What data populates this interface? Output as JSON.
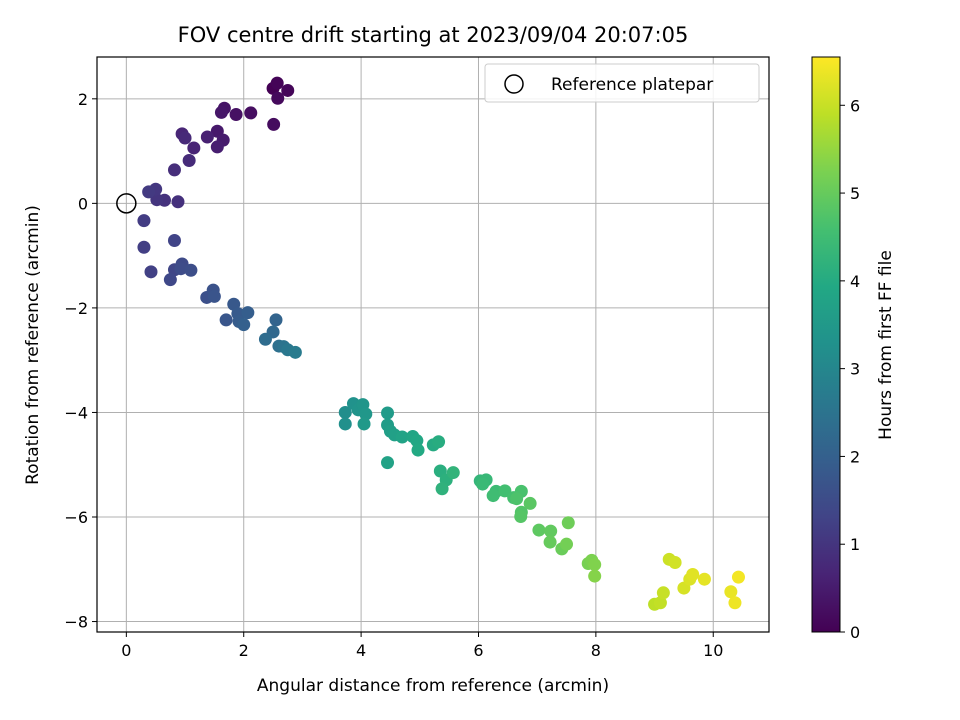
{
  "chart_data": {
    "type": "scatter",
    "title": "FOV centre drift starting at 2023/09/04 20:07:05",
    "xlabel": "Angular distance from reference (arcmin)",
    "ylabel": "Rotation from reference (arcmin)",
    "xlim": [
      -0.5,
      10.95
    ],
    "ylim": [
      -8.2,
      2.8
    ],
    "xticks": [
      0,
      2,
      4,
      6,
      8,
      10
    ],
    "yticks": [
      -8,
      -6,
      -4,
      -2,
      0,
      2
    ],
    "grid": true,
    "colormap": "viridis",
    "colorbar": {
      "label": "Hours from first FF file",
      "range": [
        0,
        6.55
      ],
      "ticks": [
        0,
        1,
        2,
        3,
        4,
        5,
        6
      ]
    },
    "legend": {
      "placement": "top-right",
      "entries": [
        "Reference platepar"
      ]
    },
    "reference_point": {
      "x": 0,
      "y": 0
    },
    "points": [
      {
        "x": 2.5,
        "y": 2.2,
        "c": 0.0
      },
      {
        "x": 2.57,
        "y": 2.3,
        "c": 0.05
      },
      {
        "x": 2.75,
        "y": 2.16,
        "c": 0.1
      },
      {
        "x": 2.58,
        "y": 2.01,
        "c": 0.15
      },
      {
        "x": 2.51,
        "y": 1.51,
        "c": 0.2
      },
      {
        "x": 2.12,
        "y": 1.73,
        "c": 0.25
      },
      {
        "x": 1.87,
        "y": 1.7,
        "c": 0.3
      },
      {
        "x": 1.67,
        "y": 1.82,
        "c": 0.35
      },
      {
        "x": 1.62,
        "y": 1.74,
        "c": 0.4
      },
      {
        "x": 1.55,
        "y": 1.38,
        "c": 0.45
      },
      {
        "x": 1.65,
        "y": 1.21,
        "c": 0.5
      },
      {
        "x": 1.55,
        "y": 1.08,
        "c": 0.55
      },
      {
        "x": 1.38,
        "y": 1.27,
        "c": 0.6
      },
      {
        "x": 1.15,
        "y": 1.06,
        "c": 0.65
      },
      {
        "x": 0.95,
        "y": 1.33,
        "c": 0.7
      },
      {
        "x": 1.0,
        "y": 1.25,
        "c": 0.75
      },
      {
        "x": 1.07,
        "y": 0.82,
        "c": 0.8
      },
      {
        "x": 0.82,
        "y": 0.64,
        "c": 0.85
      },
      {
        "x": 0.88,
        "y": 0.03,
        "c": 0.9
      },
      {
        "x": 0.65,
        "y": 0.06,
        "c": 0.95
      },
      {
        "x": 0.52,
        "y": 0.07,
        "c": 1.0
      },
      {
        "x": 0.5,
        "y": 0.27,
        "c": 1.05
      },
      {
        "x": 0.38,
        "y": 0.22,
        "c": 1.1
      },
      {
        "x": 0.3,
        "y": -0.33,
        "c": 1.15
      },
      {
        "x": 0.3,
        "y": -0.84,
        "c": 1.2
      },
      {
        "x": 0.42,
        "y": -1.31,
        "c": 1.25
      },
      {
        "x": 0.82,
        "y": -0.71,
        "c": 1.3
      },
      {
        "x": 0.82,
        "y": -1.27,
        "c": 1.35
      },
      {
        "x": 0.75,
        "y": -1.46,
        "c": 1.4
      },
      {
        "x": 0.95,
        "y": -1.16,
        "c": 1.45
      },
      {
        "x": 0.93,
        "y": -1.25,
        "c": 1.5
      },
      {
        "x": 1.1,
        "y": -1.28,
        "c": 1.55
      },
      {
        "x": 1.37,
        "y": -1.8,
        "c": 1.6
      },
      {
        "x": 1.48,
        "y": -1.66,
        "c": 1.65
      },
      {
        "x": 1.5,
        "y": -1.78,
        "c": 1.7
      },
      {
        "x": 1.7,
        "y": -2.23,
        "c": 1.75
      },
      {
        "x": 1.83,
        "y": -1.93,
        "c": 1.8
      },
      {
        "x": 1.9,
        "y": -2.11,
        "c": 1.85
      },
      {
        "x": 1.92,
        "y": -2.26,
        "c": 1.9
      },
      {
        "x": 2.07,
        "y": -2.09,
        "c": 1.95
      },
      {
        "x": 2.0,
        "y": -2.32,
        "c": 2.0
      },
      {
        "x": 2.55,
        "y": -2.23,
        "c": 2.1
      },
      {
        "x": 2.5,
        "y": -2.46,
        "c": 2.2
      },
      {
        "x": 2.37,
        "y": -2.6,
        "c": 2.3
      },
      {
        "x": 2.6,
        "y": -2.73,
        "c": 2.4
      },
      {
        "x": 2.68,
        "y": -2.74,
        "c": 2.5
      },
      {
        "x": 2.75,
        "y": -2.8,
        "c": 2.6
      },
      {
        "x": 2.88,
        "y": -2.85,
        "c": 2.7
      },
      {
        "x": 3.73,
        "y": -4.0,
        "c": 3.2
      },
      {
        "x": 3.73,
        "y": -4.22,
        "c": 3.25
      },
      {
        "x": 3.87,
        "y": -3.83,
        "c": 3.3
      },
      {
        "x": 3.95,
        "y": -3.95,
        "c": 3.35
      },
      {
        "x": 4.03,
        "y": -3.85,
        "c": 3.4
      },
      {
        "x": 4.08,
        "y": -4.03,
        "c": 3.45
      },
      {
        "x": 4.05,
        "y": -4.22,
        "c": 3.5
      },
      {
        "x": 4.45,
        "y": -4.01,
        "c": 3.55
      },
      {
        "x": 4.45,
        "y": -4.24,
        "c": 3.6
      },
      {
        "x": 4.5,
        "y": -4.36,
        "c": 3.65
      },
      {
        "x": 4.57,
        "y": -4.43,
        "c": 3.7
      },
      {
        "x": 4.45,
        "y": -4.96,
        "c": 3.75
      },
      {
        "x": 4.7,
        "y": -4.47,
        "c": 3.8
      },
      {
        "x": 4.88,
        "y": -4.46,
        "c": 3.85
      },
      {
        "x": 4.95,
        "y": -4.54,
        "c": 3.9
      },
      {
        "x": 4.97,
        "y": -4.72,
        "c": 3.95
      },
      {
        "x": 5.23,
        "y": -4.62,
        "c": 4.0
      },
      {
        "x": 5.32,
        "y": -4.56,
        "c": 4.05
      },
      {
        "x": 5.35,
        "y": -5.12,
        "c": 4.1
      },
      {
        "x": 5.45,
        "y": -5.29,
        "c": 4.15
      },
      {
        "x": 5.38,
        "y": -5.46,
        "c": 4.2
      },
      {
        "x": 5.57,
        "y": -5.15,
        "c": 4.25
      },
      {
        "x": 6.03,
        "y": -5.31,
        "c": 4.3
      },
      {
        "x": 6.13,
        "y": -5.29,
        "c": 4.35
      },
      {
        "x": 6.07,
        "y": -5.37,
        "c": 4.4
      },
      {
        "x": 6.3,
        "y": -5.51,
        "c": 4.45
      },
      {
        "x": 6.25,
        "y": -5.59,
        "c": 4.5
      },
      {
        "x": 6.45,
        "y": -5.5,
        "c": 4.55
      },
      {
        "x": 6.6,
        "y": -5.63,
        "c": 4.6
      },
      {
        "x": 6.73,
        "y": -5.51,
        "c": 4.65
      },
      {
        "x": 6.65,
        "y": -5.65,
        "c": 4.7
      },
      {
        "x": 6.73,
        "y": -5.91,
        "c": 4.75
      },
      {
        "x": 6.72,
        "y": -5.99,
        "c": 4.8
      },
      {
        "x": 6.88,
        "y": -5.74,
        "c": 4.85
      },
      {
        "x": 7.03,
        "y": -6.25,
        "c": 4.9
      },
      {
        "x": 7.23,
        "y": -6.27,
        "c": 4.95
      },
      {
        "x": 7.22,
        "y": -6.48,
        "c": 5.0
      },
      {
        "x": 7.42,
        "y": -6.61,
        "c": 5.05
      },
      {
        "x": 7.53,
        "y": -6.11,
        "c": 5.1
      },
      {
        "x": 7.5,
        "y": -6.52,
        "c": 5.15
      },
      {
        "x": 7.87,
        "y": -6.89,
        "c": 5.2
      },
      {
        "x": 7.93,
        "y": -6.83,
        "c": 5.25
      },
      {
        "x": 7.98,
        "y": -6.91,
        "c": 5.3
      },
      {
        "x": 7.98,
        "y": -7.13,
        "c": 5.35
      },
      {
        "x": 9.0,
        "y": -7.67,
        "c": 5.9
      },
      {
        "x": 9.1,
        "y": -7.64,
        "c": 5.95
      },
      {
        "x": 9.15,
        "y": -7.45,
        "c": 6.0
      },
      {
        "x": 9.25,
        "y": -6.81,
        "c": 6.05
      },
      {
        "x": 9.35,
        "y": -6.87,
        "c": 6.1
      },
      {
        "x": 9.5,
        "y": -7.36,
        "c": 6.15
      },
      {
        "x": 9.6,
        "y": -7.19,
        "c": 6.2
      },
      {
        "x": 9.65,
        "y": -7.1,
        "c": 6.25
      },
      {
        "x": 9.85,
        "y": -7.19,
        "c": 6.3
      },
      {
        "x": 10.3,
        "y": -7.43,
        "c": 6.35
      },
      {
        "x": 10.37,
        "y": -7.64,
        "c": 6.4
      },
      {
        "x": 10.43,
        "y": -7.15,
        "c": 6.45
      }
    ]
  }
}
